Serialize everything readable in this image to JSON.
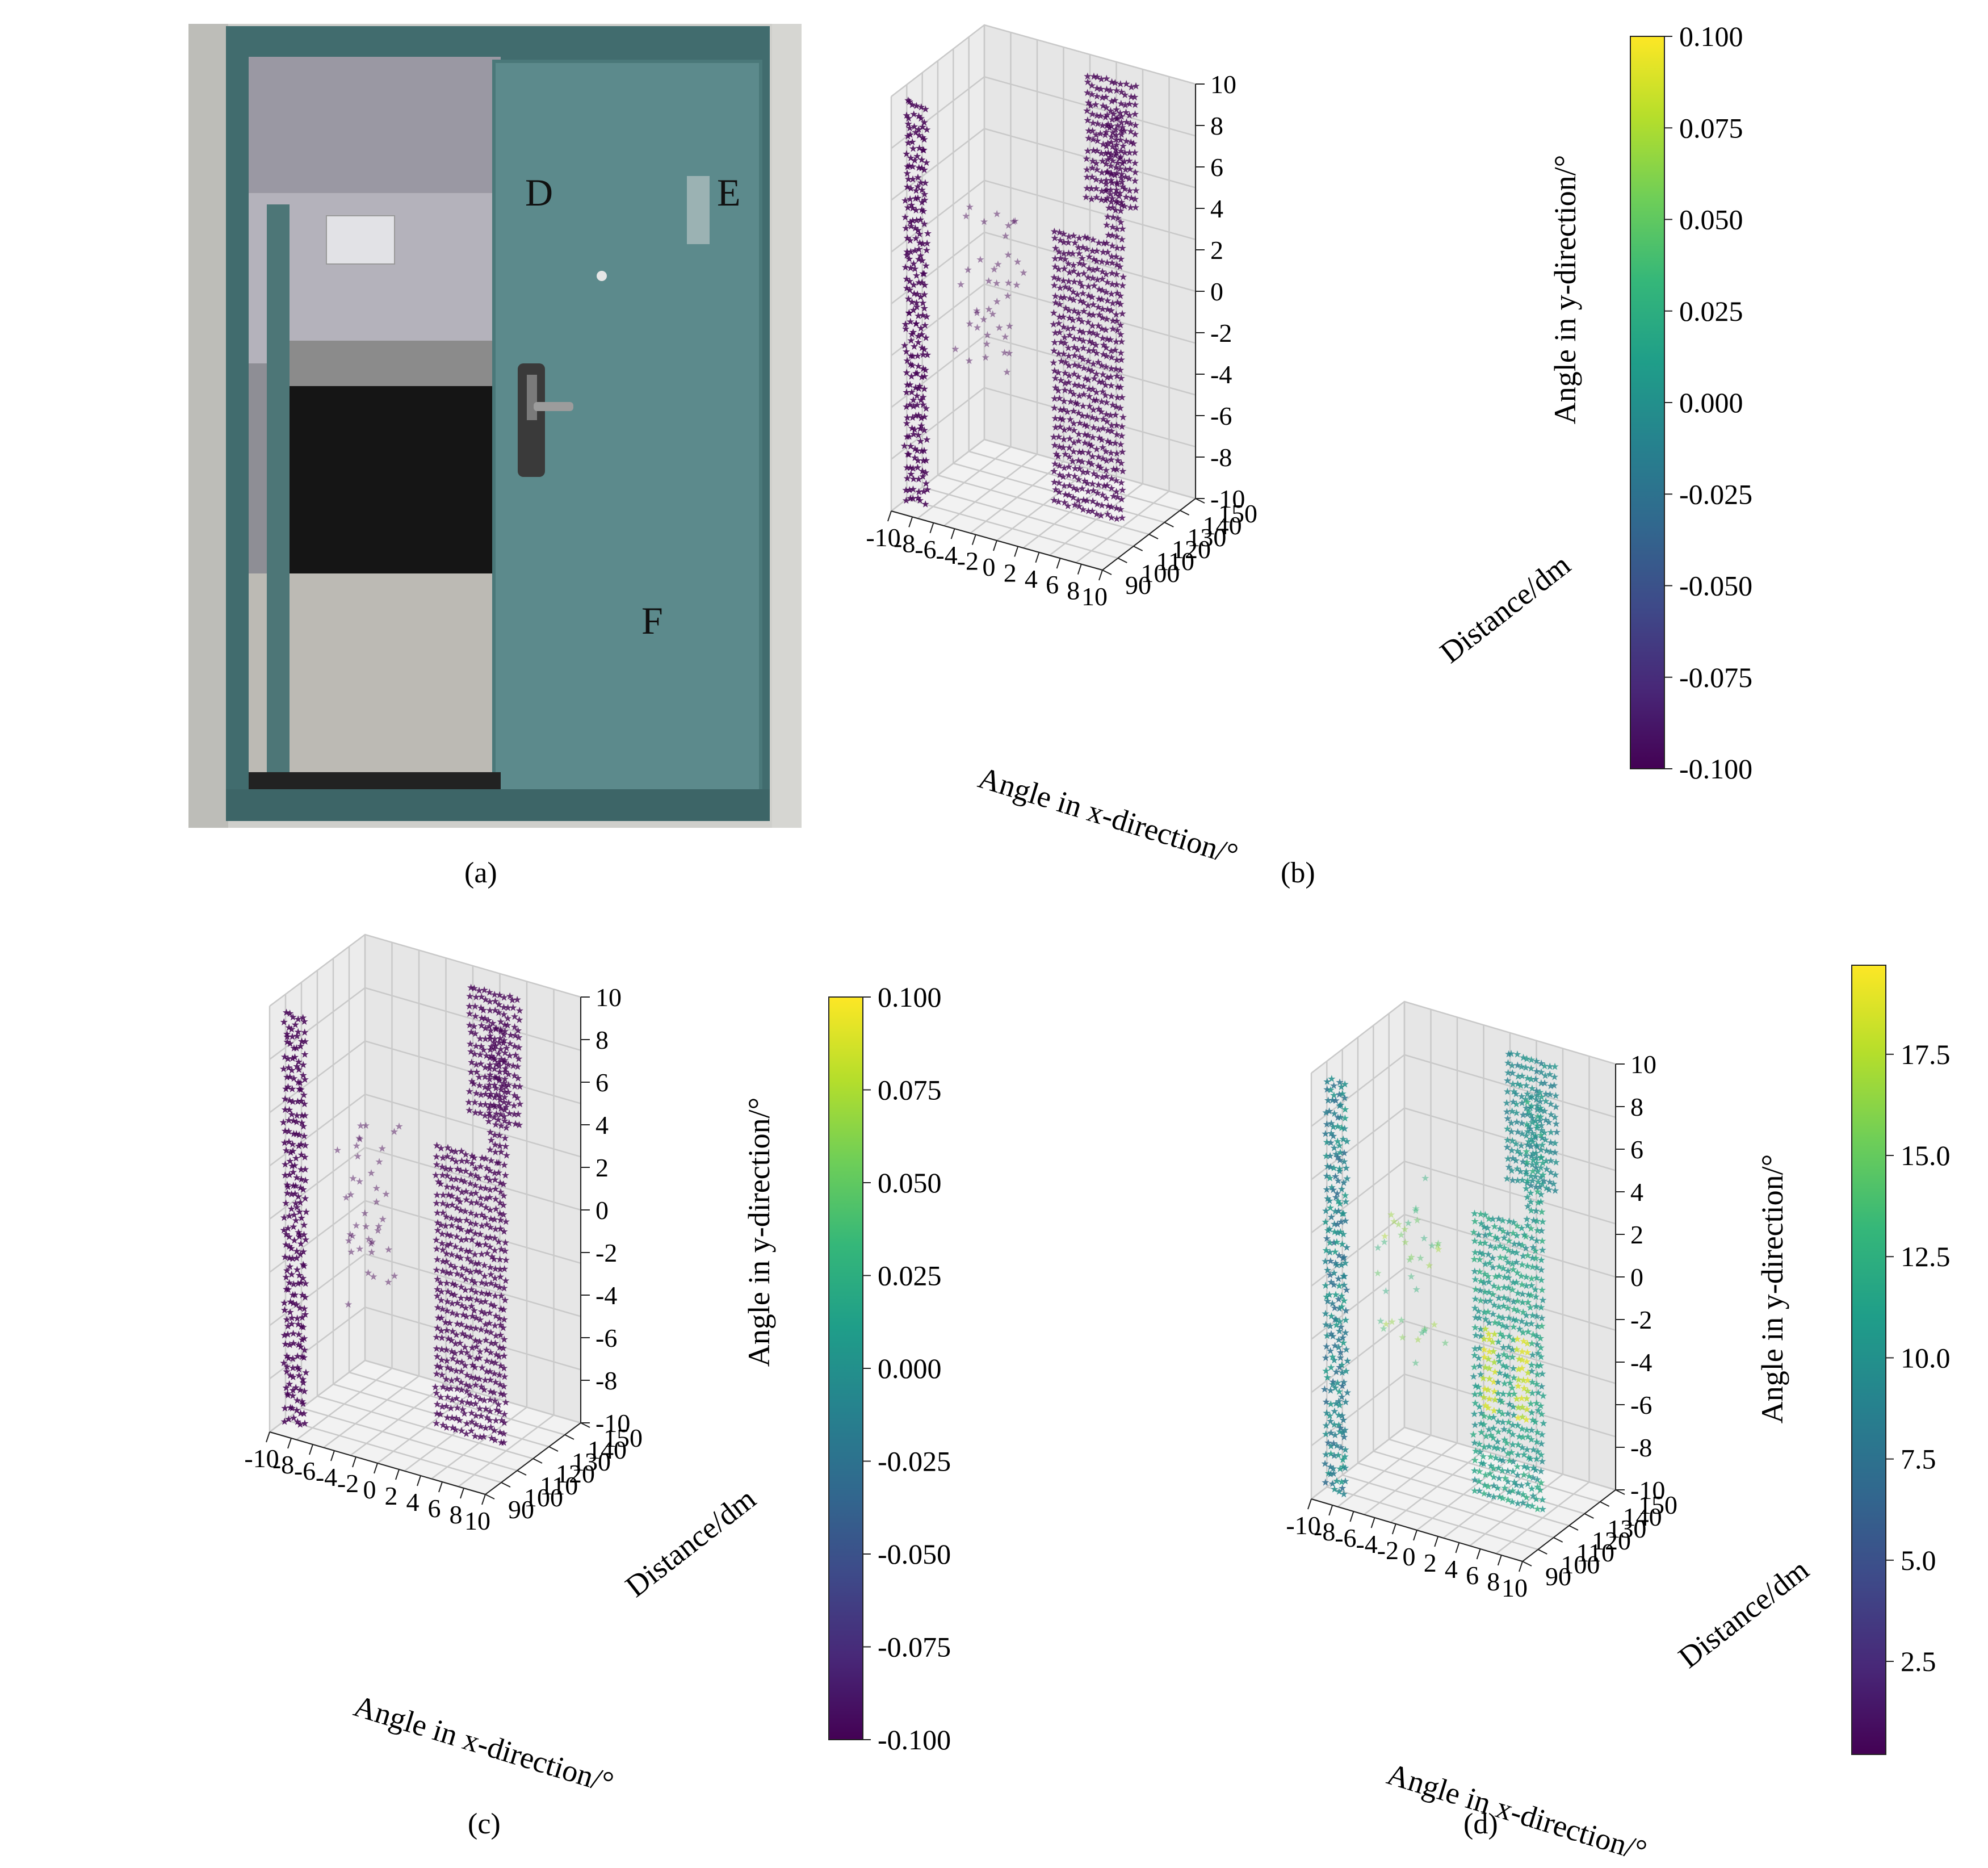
{
  "figure": {
    "panel_labels": [
      "(a)",
      "(b)",
      "(c)",
      "(d)"
    ],
    "photo_markers": [
      "D",
      "E",
      "F"
    ],
    "colors": {
      "door": "#5b8a8b",
      "frame": "#3f6b6c",
      "wall": "#c8c8c4",
      "dark": "#1c1c1c",
      "floor": "#b9b6b0",
      "viridis": [
        "#440154",
        "#482878",
        "#3e4a89",
        "#31688e",
        "#26828e",
        "#1f9e89",
        "#35b779",
        "#6ece58",
        "#b5de2b",
        "#fde725"
      ]
    }
  },
  "chart_data": [
    {
      "panel": "(b)",
      "type": "scatter",
      "projection": "3d",
      "marker": "star",
      "xlabel": "Angle in x-direction/°",
      "ylabel": "Distance/dm",
      "zlabel": "Angle in y-direction/°",
      "xticks": [
        "-10",
        "-8",
        "-6",
        "-4",
        "-2",
        "0",
        "2",
        "4",
        "6",
        "8",
        "10"
      ],
      "yticks": [
        "90",
        "100",
        "110",
        "120",
        "130",
        "140",
        "150"
      ],
      "zticks": [
        "-10",
        "-8",
        "-6",
        "-4",
        "-2",
        "0",
        "2",
        "4",
        "6",
        "8",
        "10"
      ],
      "xlim": [
        -10,
        10
      ],
      "ylim": [
        90,
        150
      ],
      "zlim": [
        -10,
        10
      ],
      "grid": true,
      "colorbar": {
        "ticks": [
          "-0.100",
          "-0.075",
          "-0.050",
          "-0.025",
          "0.000",
          "0.025",
          "0.050",
          "0.075",
          "0.100"
        ],
        "range": [
          -0.1,
          0.1
        ]
      },
      "point_color_value": -0.1
    },
    {
      "panel": "(c)",
      "type": "scatter",
      "projection": "3d",
      "marker": "star",
      "xlabel": "Angle in x-direction/°",
      "ylabel": "Distance/dm",
      "zlabel": "Angle in y-direction/°",
      "xticks": [
        "-10",
        "-8",
        "-6",
        "-4",
        "-2",
        "0",
        "2",
        "4",
        "6",
        "8",
        "10"
      ],
      "yticks": [
        "90",
        "100",
        "110",
        "120",
        "130",
        "140",
        "150"
      ],
      "zticks": [
        "-10",
        "-8",
        "-6",
        "-4",
        "-2",
        "0",
        "2",
        "4",
        "6",
        "8",
        "10"
      ],
      "xlim": [
        -10,
        10
      ],
      "ylim": [
        90,
        150
      ],
      "zlim": [
        -10,
        10
      ],
      "grid": true,
      "colorbar": {
        "ticks": [
          "-0.100",
          "-0.075",
          "-0.050",
          "-0.025",
          "0.000",
          "0.025",
          "0.050",
          "0.075",
          "0.100"
        ],
        "range": [
          -0.1,
          0.1
        ]
      },
      "point_color_value": -0.1
    },
    {
      "panel": "(d)",
      "type": "scatter",
      "projection": "3d",
      "marker": "star",
      "xlabel": "Angle in x-direction/°",
      "ylabel": "Distance/dm",
      "zlabel": "Angle in y-direction/°",
      "xticks": [
        "-10",
        "-8",
        "-6",
        "-4",
        "-2",
        "0",
        "2",
        "4",
        "6",
        "8",
        "10"
      ],
      "yticks": [
        "90",
        "100",
        "110",
        "120",
        "130",
        "140",
        "150"
      ],
      "zticks": [
        "-10",
        "-8",
        "-6",
        "-4",
        "-2",
        "0",
        "2",
        "4",
        "6",
        "8",
        "10"
      ],
      "xlim": [
        -10,
        10
      ],
      "ylim": [
        90,
        150
      ],
      "zlim": [
        -10,
        10
      ],
      "grid": true,
      "colorbar": {
        "ticks": [
          "2.5",
          "5.0",
          "7.5",
          "10.0",
          "12.5",
          "15.0",
          "17.5"
        ],
        "range": [
          0.2,
          19.7
        ]
      },
      "point_color_range": [
        0.2,
        19.7
      ]
    }
  ]
}
